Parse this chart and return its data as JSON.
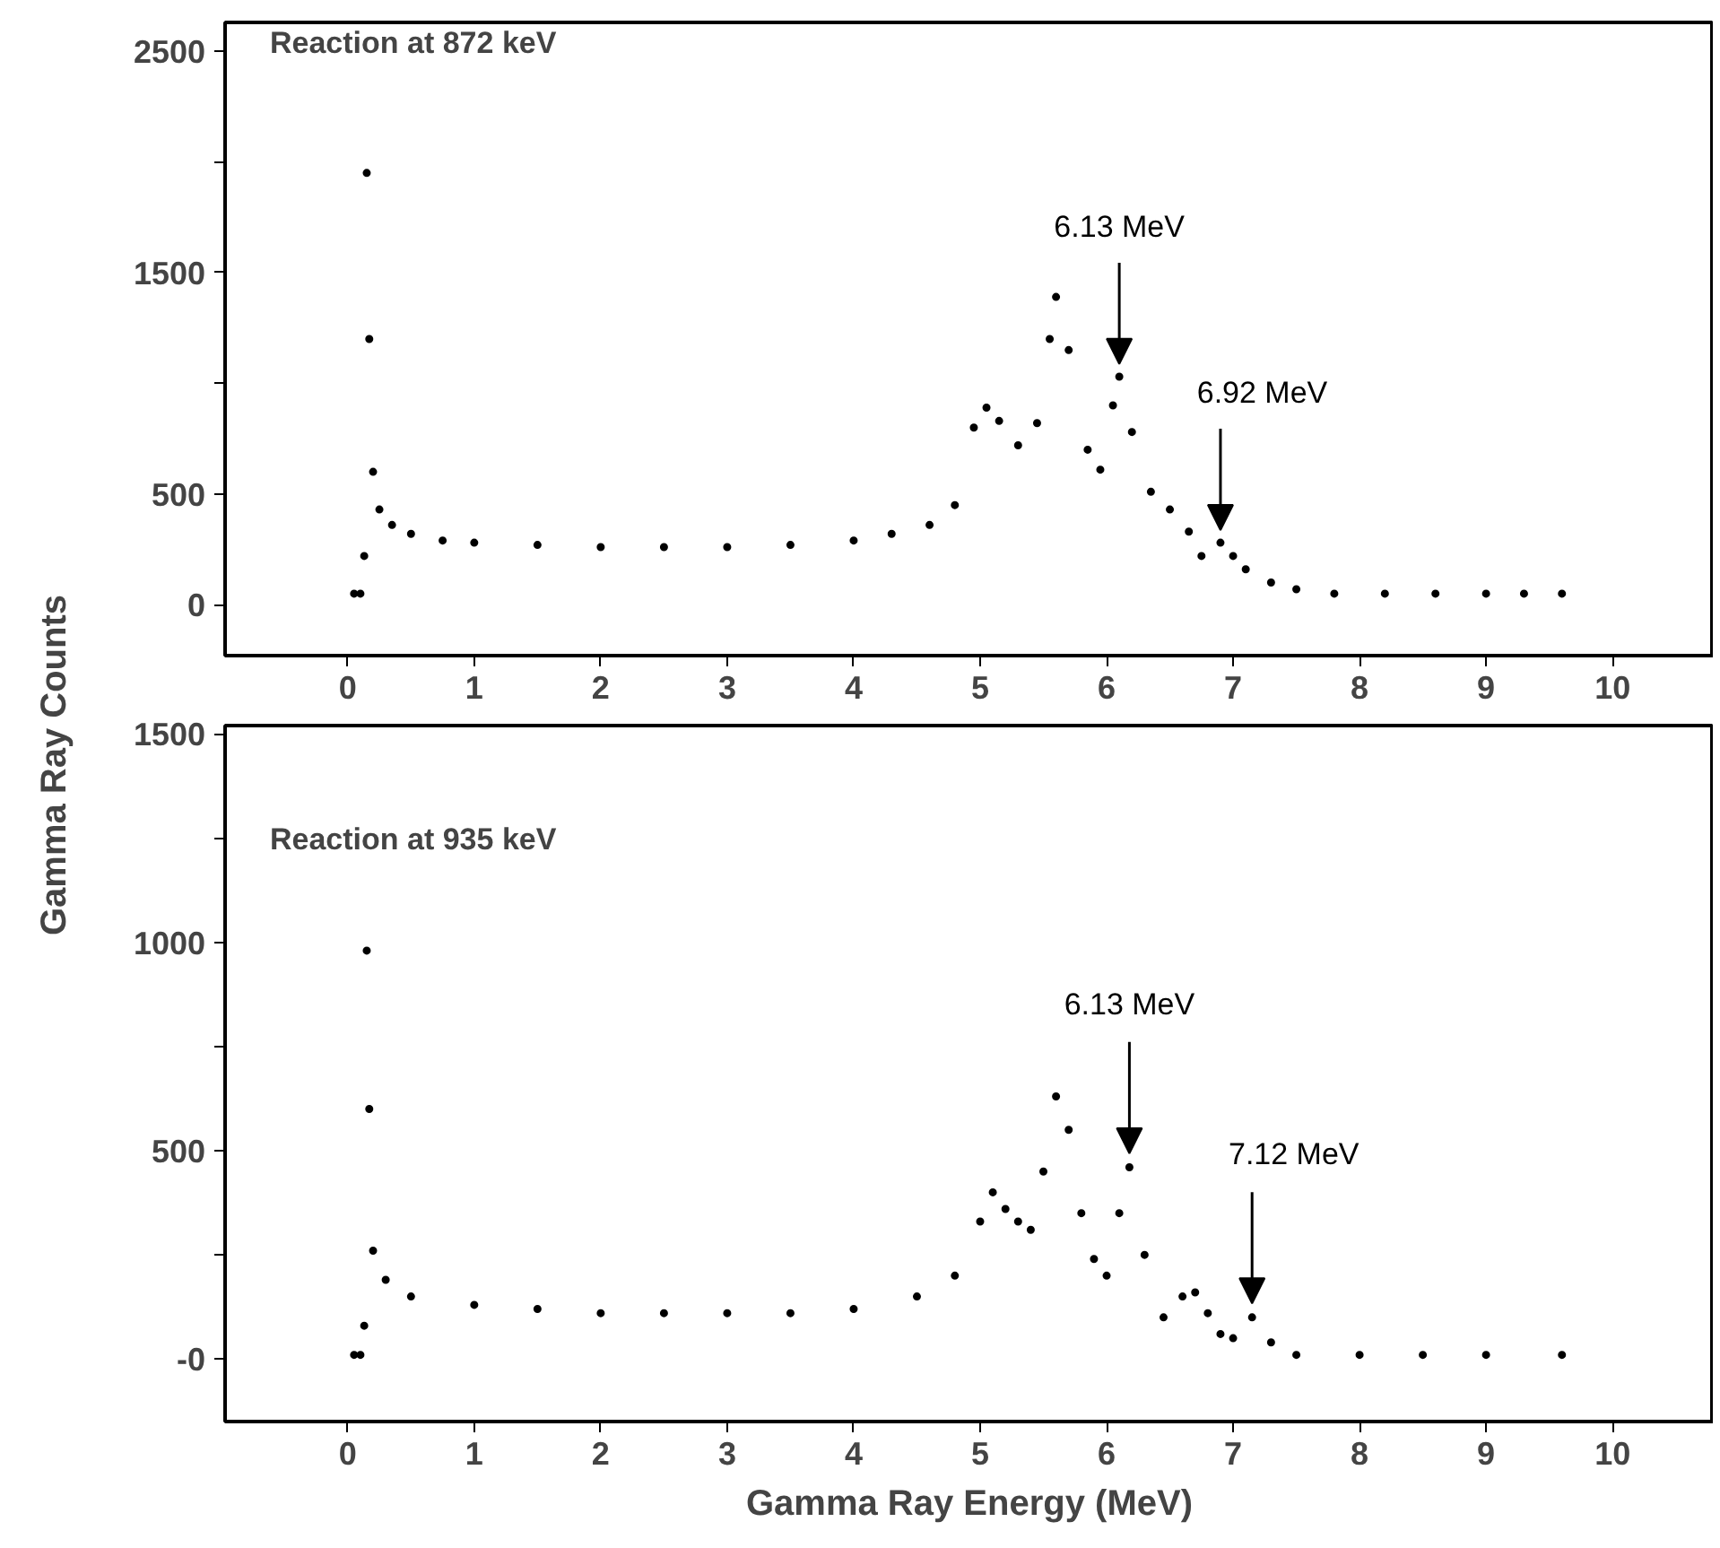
{
  "chart_data": [
    {
      "type": "scatter",
      "title": "Reaction at 872 keV",
      "ylabel": "Gamma Ray Counts",
      "marker": "circle",
      "grid": false,
      "xlim": [
        -0.97,
        10.8
      ],
      "xticks": [
        0,
        1,
        2,
        3,
        4,
        5,
        6,
        7,
        8,
        9,
        10
      ],
      "ylim": [
        -230,
        2630
      ],
      "yticks": [
        0,
        500,
        {
          "value": 1000,
          "label": null
        },
        1500,
        {
          "value": 2000,
          "label": null
        },
        2500
      ],
      "x": [
        0.05,
        0.1,
        0.13,
        0.15,
        0.17,
        0.2,
        0.25,
        0.35,
        0.5,
        0.75,
        1,
        1.5,
        2,
        2.5,
        3,
        3.5,
        4,
        4.3,
        4.6,
        4.8,
        4.95,
        5.05,
        5.15,
        5.3,
        5.45,
        5.55,
        5.6,
        5.7,
        5.85,
        5.95,
        6.05,
        6.1,
        6.2,
        6.35,
        6.5,
        6.65,
        6.75,
        6.9,
        7.0,
        7.1,
        7.3,
        7.5,
        7.8,
        8.2,
        8.6,
        9.0,
        9.3,
        9.6
      ],
      "series": [
        {
          "color": "#000000",
          "values": [
            50,
            50,
            220,
            1950,
            1200,
            600,
            430,
            360,
            320,
            290,
            280,
            270,
            260,
            260,
            260,
            270,
            290,
            320,
            360,
            450,
            800,
            890,
            830,
            720,
            820,
            1200,
            1390,
            1150,
            700,
            610,
            900,
            1030,
            780,
            510,
            430,
            330,
            220,
            280,
            220,
            160,
            100,
            70,
            50,
            50,
            50,
            50,
            50,
            50
          ]
        }
      ],
      "annotations": [
        {
          "text": "6.13 MeV",
          "x": 6.1,
          "y": 1030
        },
        {
          "text": "6.92 MeV",
          "x": 6.9,
          "y": 280
        }
      ]
    },
    {
      "type": "scatter",
      "title": "Reaction at 935 keV",
      "xlabel": "Gamma Ray Energy (MeV)",
      "marker": "circle",
      "grid": false,
      "xlim": [
        -0.97,
        10.8
      ],
      "xticks": [
        0,
        1,
        2,
        3,
        4,
        5,
        6,
        7,
        8,
        9,
        10
      ],
      "ylim": [
        -150,
        1520
      ],
      "yticks": [
        {
          "value": 0,
          "label": "-0"
        },
        {
          "value": 250,
          "label": null
        },
        500,
        {
          "value": 750,
          "label": null
        },
        1000,
        {
          "value": 1250,
          "label": null
        },
        1500
      ],
      "x": [
        0.05,
        0.1,
        0.13,
        0.15,
        0.17,
        0.2,
        0.3,
        0.5,
        1,
        1.5,
        2,
        2.5,
        3,
        3.5,
        4,
        4.5,
        4.8,
        5.0,
        5.1,
        5.2,
        5.3,
        5.4,
        5.5,
        5.6,
        5.7,
        5.8,
        5.9,
        6.0,
        6.1,
        6.18,
        6.3,
        6.45,
        6.6,
        6.7,
        6.8,
        6.9,
        7.0,
        7.15,
        7.3,
        7.5,
        8,
        8.5,
        9,
        9.6
      ],
      "series": [
        {
          "color": "#000000",
          "values": [
            10,
            10,
            80,
            980,
            600,
            260,
            190,
            150,
            130,
            120,
            110,
            110,
            110,
            110,
            120,
            150,
            200,
            330,
            400,
            360,
            330,
            310,
            450,
            630,
            550,
            350,
            240,
            200,
            350,
            460,
            250,
            100,
            150,
            160,
            110,
            60,
            50,
            100,
            40,
            10,
            10,
            10,
            10,
            10
          ]
        }
      ],
      "annotations": [
        {
          "text": "6.13 MeV",
          "x": 6.18,
          "y": 460
        },
        {
          "text": "7.12 MeV",
          "x": 7.15,
          "y": 100
        }
      ]
    }
  ]
}
